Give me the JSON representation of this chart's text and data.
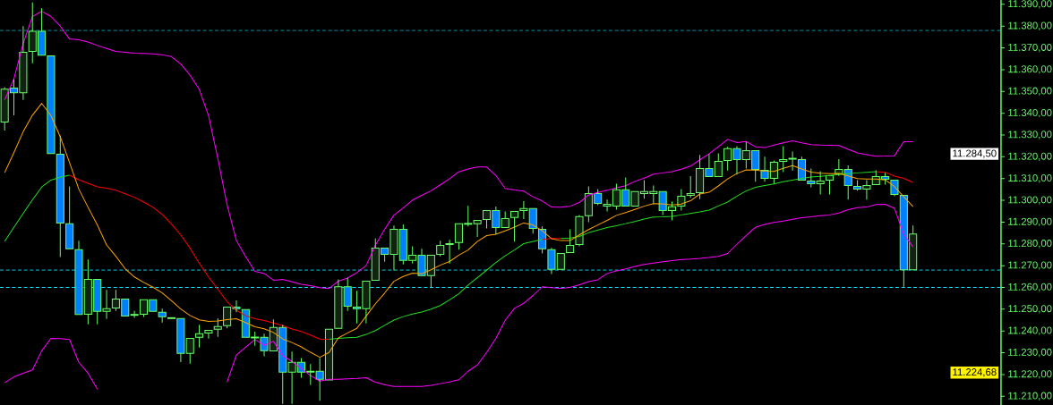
{
  "chart_data": {
    "type": "candlestick",
    "categories": [
      null,
      null,
      null,
      null,
      null,
      null,
      null,
      null,
      null,
      null,
      null,
      null,
      null,
      null,
      null,
      null,
      null,
      null,
      null,
      null,
      null,
      null,
      null,
      null,
      null,
      null,
      null,
      null,
      null,
      null,
      null,
      null,
      null,
      null,
      null,
      null,
      null,
      null,
      null,
      null,
      null,
      null,
      null,
      null,
      null,
      null,
      null,
      null,
      null,
      null,
      null,
      null,
      null,
      null,
      null,
      null,
      null,
      null,
      null,
      null,
      null,
      null,
      null,
      null,
      null,
      null,
      null,
      null,
      null,
      null,
      null,
      null,
      null,
      null,
      null,
      null,
      null,
      null,
      null,
      null,
      null,
      null,
      null,
      null,
      null,
      null,
      null,
      null,
      null,
      null,
      null,
      null,
      null,
      null,
      null,
      null,
      null,
      null,
      null
    ],
    "ohlc": [
      [
        11336,
        11352,
        11332,
        11351
      ],
      [
        11351.6,
        11355.7,
        11339.0,
        11349.4
      ],
      [
        11349.4,
        11380.0,
        11346.1,
        11368.0
      ],
      [
        11368.4,
        11390.9,
        11362.9,
        11377.6
      ],
      [
        11377.6,
        11388.2,
        11366.2,
        11366.6
      ],
      [
        11366.3,
        11366.9,
        11321.1,
        11321.5
      ],
      [
        11321.2,
        11329.7,
        11274.0,
        11289.6
      ],
      [
        11289.2,
        11306.4,
        11277.3,
        11277.7
      ],
      [
        11277.3,
        11281.4,
        11247.2,
        11247.6
      ],
      [
        11247.7,
        11272.8,
        11243.1,
        11263.7
      ],
      [
        11263.7,
        11263.7,
        11243.1,
        11249.0
      ],
      [
        11249.0,
        11258.9,
        11245.5,
        11250.2
      ],
      [
        11250.6,
        11258.9,
        11249.2,
        11254.7
      ],
      [
        11254.7,
        11254.7,
        11246.4,
        11246.9
      ],
      [
        11247.2,
        11249.2,
        11246.0,
        11247.6
      ],
      [
        11247.7,
        11254.3,
        11246.4,
        11254.3
      ],
      [
        11254.3,
        11254.3,
        11248.6,
        11249.0
      ],
      [
        11248.6,
        11250.2,
        11243.9,
        11246.5
      ],
      [
        11245.7,
        11246.4,
        11245.5,
        11246.1
      ],
      [
        11245.7,
        11245.7,
        11225.7,
        11229.7
      ],
      [
        11229.7,
        11236.6,
        11225.0,
        11236.6
      ],
      [
        11237.1,
        11242.8,
        11232.4,
        11238.7
      ],
      [
        11239.1,
        11240.9,
        11236.5,
        11240.3
      ],
      [
        11240.8,
        11245.8,
        11237.3,
        11242.0
      ],
      [
        11242.4,
        11251.0,
        11241.2,
        11251.0
      ],
      [
        11251.0,
        11254.0,
        11248.6,
        11250.2
      ],
      [
        11249.8,
        11249.8,
        11236.5,
        11237.1
      ],
      [
        11236.8,
        11239.7,
        11233.2,
        11237.2
      ],
      [
        11237.1,
        11238.7,
        11228.4,
        11230.9
      ],
      [
        11230.8,
        11245.3,
        11230.4,
        11241.6
      ],
      [
        11241.6,
        11242.8,
        11206.5,
        11221.1
      ],
      [
        11221.1,
        11230.5,
        11206.5,
        11225.6
      ],
      [
        11225.6,
        11227.6,
        11218.5,
        11221.1
      ],
      [
        11221.1,
        11224.8,
        11215.2,
        11221.5
      ],
      [
        11221.5,
        11227.6,
        11208.0,
        11217.8
      ],
      [
        11217.5,
        11241.4,
        11217.5,
        11240.8
      ],
      [
        11241.2,
        11263.7,
        11240.6,
        11260.3
      ],
      [
        11260.3,
        11264.4,
        11249.2,
        11251.4
      ],
      [
        11251.0,
        11258.5,
        11243.5,
        11250.2
      ],
      [
        11250.2,
        11262.9,
        11243.5,
        11262.9
      ],
      [
        11263.3,
        11282.5,
        11262.9,
        11278.1
      ],
      [
        11278.1,
        11278.1,
        11271.8,
        11275.2
      ],
      [
        11275.2,
        11288.4,
        11267.8,
        11286.7
      ],
      [
        11286.7,
        11288.9,
        11270.6,
        11272.4
      ],
      [
        11272.4,
        11278.9,
        11271.0,
        11274.8
      ],
      [
        11274.8,
        11277.8,
        11265.0,
        11265.4
      ],
      [
        11265.4,
        11274.8,
        11260.0,
        11274.8
      ],
      [
        11275.2,
        11281.4,
        11274.3,
        11279.3
      ],
      [
        11279.7,
        11281.9,
        11271.0,
        11280.1
      ],
      [
        11280.6,
        11289.2,
        11277.3,
        11289.2
      ],
      [
        11289.0,
        11297.5,
        11288.0,
        11289.4
      ],
      [
        11289.2,
        11290.8,
        11283.2,
        11290.8
      ],
      [
        11291.2,
        11295.7,
        11287.1,
        11295.3
      ],
      [
        11295.3,
        11297.1,
        11284.3,
        11287.5
      ],
      [
        11287.5,
        11294.9,
        11287.5,
        11291.6
      ],
      [
        11292.1,
        11294.9,
        11281.0,
        11294.9
      ],
      [
        11295.3,
        11299.6,
        11291.4,
        11296.2
      ],
      [
        11296.2,
        11296.2,
        11284.7,
        11287.1
      ],
      [
        11286.7,
        11288.0,
        11275.6,
        11277.7
      ],
      [
        11277.3,
        11278.2,
        11266.2,
        11268.3
      ],
      [
        11268.3,
        11275.6,
        11267.9,
        11275.6
      ],
      [
        11276.0,
        11286.7,
        11275.6,
        11279.3
      ],
      [
        11279.7,
        11293.3,
        11278.9,
        11292.5
      ],
      [
        11292.9,
        11306.4,
        11290.0,
        11303.1
      ],
      [
        11303.1,
        11305.2,
        11297.8,
        11298.6
      ],
      [
        11297.4,
        11300.3,
        11294.9,
        11298.2
      ],
      [
        11297.4,
        11307.6,
        11295.7,
        11304.8
      ],
      [
        11304.8,
        11310.5,
        11297.0,
        11297.4
      ],
      [
        11297.4,
        11304.4,
        11297.4,
        11304.0
      ],
      [
        11303.1,
        11309.3,
        11300.7,
        11304.0
      ],
      [
        11303.1,
        11306.8,
        11298.6,
        11304.0
      ],
      [
        11304.0,
        11304.0,
        11293.3,
        11295.3
      ],
      [
        11295.3,
        11299.4,
        11290.8,
        11297.0
      ],
      [
        11297.4,
        11305.2,
        11295.3,
        11301.9
      ],
      [
        11302.3,
        11311.1,
        11301.2,
        11303.1
      ],
      [
        11303.5,
        11320.9,
        11300.5,
        11314.6
      ],
      [
        11314.6,
        11321.3,
        11310.2,
        11310.9
      ],
      [
        11310.9,
        11321.6,
        11310.2,
        11317.9
      ],
      [
        11318.3,
        11324.6,
        11313.7,
        11323.7
      ],
      [
        11323.7,
        11324.9,
        11311.8,
        11318.7
      ],
      [
        11318.7,
        11326.8,
        11314.6,
        11322.8
      ],
      [
        11322.8,
        11322.8,
        11308.5,
        11314.2
      ],
      [
        11313.8,
        11320.0,
        11308.5,
        11310.1
      ],
      [
        11310.1,
        11318.3,
        11307.6,
        11317.5
      ],
      [
        11317.9,
        11324.9,
        11313.0,
        11318.7
      ],
      [
        11318.9,
        11322.4,
        11313.7,
        11319.3
      ],
      [
        11318.7,
        11320.0,
        11308.9,
        11309.3
      ],
      [
        11308.9,
        11314.6,
        11306.0,
        11307.6
      ],
      [
        11307.6,
        11313.4,
        11302.7,
        11308.9
      ],
      [
        11309.3,
        11311.3,
        11302.7,
        11311.3
      ],
      [
        11312.2,
        11318.9,
        11311.2,
        11314.2
      ],
      [
        11314.2,
        11316.0,
        11300.3,
        11306.8
      ],
      [
        11306.4,
        11309.3,
        11304.4,
        11305.2
      ],
      [
        11305.2,
        11309.3,
        11300.3,
        11306.8
      ],
      [
        11307.2,
        11313.8,
        11306.8,
        11310.9
      ],
      [
        11310.9,
        11312.6,
        11307.2,
        11309.7
      ],
      [
        11309.3,
        11309.3,
        11301.9,
        11302.7
      ],
      [
        11302.3,
        11302.3,
        11260.3,
        11268.1
      ],
      [
        11268.1,
        11288.4,
        11268.1,
        11284.5
      ]
    ],
    "color": "#66ff66",
    "colors": [
      "#112211",
      "#0080ff",
      "#112211",
      "#112211",
      "#0080ff",
      "#0080ff",
      "#0080ff",
      "#0080ff",
      "#0080ff",
      "#112211",
      "#0080ff",
      "#112211",
      "#112211",
      "#0080ff",
      "#112211",
      "#112211",
      "#0080ff",
      "#0080ff",
      "#112211",
      "#0080ff",
      "#112211",
      "#112211",
      "#112211",
      "#112211",
      "#112211",
      "#0080ff",
      "#0080ff",
      "#112211",
      "#0080ff",
      "#112211",
      "#0080ff",
      "#112211",
      "#0080ff",
      "#112211",
      "#0080ff",
      "#112211",
      "#112211",
      "#0080ff",
      "#0080ff",
      "#112211",
      "#112211",
      "#0080ff",
      "#112211",
      "#0080ff",
      "#112211",
      "#0080ff",
      "#112211",
      "#112211",
      "#112211",
      "#112211",
      "#112211",
      "#112211",
      "#112211",
      "#0080ff",
      "#112211",
      "#112211",
      "#112211",
      "#0080ff",
      "#0080ff",
      "#0080ff",
      "#112211",
      "#112211",
      "#112211",
      "#112211",
      "#0080ff",
      "#112211",
      "#112211",
      "#0080ff",
      "#112211",
      "#112211",
      "#112211",
      "#0080ff",
      "#112211",
      "#112211",
      "#112211",
      "#112211",
      "#0080ff",
      "#112211",
      "#112211",
      "#0080ff",
      "#112211",
      "#0080ff",
      "#0080ff",
      "#112211",
      "#112211",
      "#112211",
      "#0080ff",
      "#0080ff",
      "#112211",
      "#112211",
      "#112211",
      "#0080ff",
      "#0080ff",
      "#112211",
      "#112211",
      "#0080ff",
      "#0080ff",
      "#0080ff",
      "#112211"
    ],
    "series": [
      {
        "type": "line",
        "color": "#ff00ff",
        "values": [
          11346.1,
          11355.7,
          11372.0,
          11384.4,
          11386.8,
          11384.4,
          11380.0,
          11374.1,
          11373.7,
          11372.7,
          11371.1,
          11369.7,
          11368.4,
          11368.0,
          11367.6,
          11367.5,
          11367.3,
          11366.8,
          11366.0,
          11362.6,
          11357.5,
          11350.9,
          11338.9,
          11319.3,
          11297.9,
          11281.6,
          11274.2,
          11267.4,
          11266.4,
          11263.3,
          11263.7,
          11262.6,
          11261.4,
          11260.8,
          11259.9,
          11259.5,
          11262.9,
          11264.3,
          11266.8,
          11270.0,
          11279.4,
          11286.7,
          11293.2,
          11296.5,
          11300.1,
          11302.3,
          11304.4,
          11307.1,
          11309.9,
          11313.1,
          11314.4,
          11315.3,
          11315.3,
          11311.4,
          11305.5,
          11304.7,
          11304.2,
          11301.6,
          11299.7,
          11296.9,
          11296.8,
          11297.3,
          11299.0,
          11302.4,
          11303.6,
          11304.6,
          11305.8,
          11306.7,
          11308.7,
          11310.2,
          11312.0,
          11312.6,
          11313.2,
          11314.3,
          11315.7,
          11318.6,
          11321.3,
          11324.6,
          11328.0,
          11326.5,
          11327.0,
          11324.6,
          11324.2,
          11325.4,
          11326.4,
          11327.3,
          11326.4,
          11325.6,
          11325.4,
          11325.3,
          11325.2,
          11323.4,
          11321.8,
          11321.0,
          11320.2,
          11320.3,
          11320.5,
          11326.9,
          11326.9
        ]
      },
      {
        "type": "line",
        "color": "#ff00ff",
        "values": [
          11216.2,
          11218.9,
          11220.6,
          11222.1,
          11230.9,
          11236.6,
          11236.5,
          11236.1,
          11225.6,
          11220.6,
          11213.3,
          null,
          null,
          null,
          null,
          null,
          null,
          null,
          null,
          null,
          null,
          null,
          null,
          null,
          11216.5,
          11228.9,
          11232.5,
          11236.1,
          11233.4,
          11235.3,
          11228.7,
          11226.0,
          11222.8,
          11219.5,
          11217.0,
          11217.8,
          11217.8,
          11218.0,
          11218.2,
          11218.5,
          11216.5,
          11215.3,
          11214.5,
          11214.5,
          11214.5,
          11214.5,
          11215.0,
          11215.8,
          11216.6,
          11217.6,
          11221.5,
          11224.4,
          11230.1,
          11236.6,
          11244.9,
          11250.4,
          11252.7,
          11256.3,
          11260.3,
          11259.9,
          11259.6,
          11260.0,
          11261.2,
          11262.7,
          11263.5,
          11266.4,
          11267.6,
          11268.5,
          11269.6,
          11270.6,
          11271.2,
          11271.8,
          11272.3,
          11272.8,
          11273.0,
          11273.3,
          11273.7,
          11274.3,
          11275.6,
          11279.8,
          11283.9,
          11287.6,
          11288.9,
          11289.9,
          11290.5,
          11291.3,
          11292.0,
          11292.4,
          11292.9,
          11293.3,
          11294.2,
          11295.7,
          11296.6,
          11296.9,
          11298.1,
          11298.2,
          11296.3,
          11284.5,
          11278.6
        ]
      },
      {
        "type": "line",
        "color": "#22dd22",
        "values": [
          11281.1,
          11287.6,
          11294.0,
          11300.2,
          11306.1,
          11309.3,
          11310.6,
          11311.5,
          null,
          null,
          null,
          null,
          null,
          null,
          null,
          null,
          null,
          null,
          null,
          null,
          null,
          null,
          null,
          null,
          null,
          null,
          null,
          null,
          null,
          null,
          null,
          null,
          null,
          null,
          null,
          11236.2,
          11236.6,
          11236.9,
          11237.1,
          11238.4,
          11240.2,
          11242.6,
          11245.0,
          11246.6,
          11247.8,
          11248.7,
          11250.0,
          11251.7,
          11254.3,
          11257.1,
          11261.1,
          11264.5,
          11267.9,
          11271.4,
          11274.5,
          11277.2,
          11280.1,
          11281.1,
          11282.1,
          null,
          11282.5,
          11282.7,
          11283.4,
          11285.1,
          11286.3,
          11287.5,
          11288.3,
          11289.3,
          11290.3,
          11291.4,
          11292.3,
          11292.4,
          11292.6,
          11293.3,
          11294.0,
          11294.7,
          11295.5,
          11297.4,
          11299.2,
          11301.9,
          11304.3,
          11306.0,
          11306.8,
          11307.5,
          11308.5,
          11309.3,
          11310.1,
          11310.7,
          11311.0,
          11311.4,
          11311.8,
          11312.2,
          11312.6,
          11312.9,
          11313.2,
          null,
          null,
          null,
          null
        ]
      },
      {
        "type": "line",
        "color": "#ff0000",
        "values": [
          null,
          null,
          null,
          null,
          null,
          null,
          null,
          11311.5,
          11309.5,
          11307.8,
          11306.2,
          11305.6,
          11304.6,
          11303.0,
          11301.4,
          11299.2,
          11296.8,
          11293.5,
          11289.1,
          11284.1,
          11278.1,
          11271.1,
          11264.8,
          11259.2,
          11253.4,
          11249.5,
          11247.0,
          11245.6,
          11244.8,
          11243.7,
          11242.4,
          11240.9,
          11239.8,
          11238.1,
          11236.3,
          11236.2,
          null,
          null,
          null,
          null,
          null,
          null,
          null,
          null,
          null,
          null,
          null,
          null,
          null,
          null,
          null,
          null,
          null,
          null,
          null,
          null,
          null,
          null,
          11282.1,
          11282.5,
          11282.5,
          null,
          null,
          null,
          null,
          null,
          null,
          null,
          null,
          null,
          null,
          null,
          null,
          null,
          null,
          null,
          null,
          null,
          null,
          null,
          null,
          null,
          null,
          null,
          null,
          null,
          null,
          null,
          null,
          null,
          null,
          null,
          null,
          null,
          11313.2,
          11312.9,
          11311.1,
          11310.1,
          11308.2
        ]
      },
      {
        "type": "line",
        "color": "#ffa500",
        "values": [
          11312.7,
          11321.9,
          11331.5,
          11339.1,
          11344.5,
          11338.9,
          11329.2,
          11317.3,
          11305.2,
          11296.8,
          11288.7,
          11279.5,
          11274.3,
          11268.6,
          11264.8,
          11262.3,
          11260.1,
          11257.5,
          11253.9,
          11250.1,
          11247.1,
          11245.1,
          11244.4,
          11244.6,
          11245.2,
          11245.6,
          11243.9,
          11241.9,
          11241.0,
          11239.3,
          11236.3,
          11234.7,
          11232.7,
          11230.2,
          11227.9,
          11230.1,
          11236.8,
          11239.1,
          11241.2,
          11246.8,
          11252.5,
          11257.4,
          11262.8,
          11265.0,
          11266.6,
          11266.3,
          11268.1,
          11270.2,
          11271.9,
          11274.8,
          11277.2,
          11281.1,
          11283.8,
          11284.4,
          11286.0,
          11287.7,
          11289.6,
          11288.7,
          11286.0,
          11282.4,
          11281.5,
          11281.5,
          11284.1,
          11286.6,
          11288.7,
          11290.8,
          11293.1,
          11294.4,
          11295.8,
          11297.3,
          11298.5,
          11298.4,
          11297.9,
          11298.3,
          11299.8,
          11302.9,
          11303.7,
          11306.6,
          11309.8,
          11312.3,
          11314.0,
          11313.9,
          11313.4,
          11313.3,
          11314.7,
          11315.9,
          11314.4,
          11313.0,
          11312.4,
          11312.2,
          11312.3,
          11311.2,
          11310.0,
          11309.8,
          11309.8,
          11309.4,
          11306.3,
          11301.6,
          11297.1
        ]
      }
    ],
    "ylim": [
      11206,
      11392
    ],
    "yticks": [
      {
        "value": 11210,
        "label": "11.210,00"
      },
      {
        "value": 11220,
        "label": "11.220,00"
      },
      {
        "value": 11230,
        "label": "11.230,00"
      },
      {
        "value": 11240,
        "label": "11.240,00"
      },
      {
        "value": 11250,
        "label": "11.250,00"
      },
      {
        "value": 11260,
        "label": "11.260,00"
      },
      {
        "value": 11270,
        "label": "11.270,00"
      },
      {
        "value": 11280,
        "label": "11.280,00"
      },
      {
        "value": 11290,
        "label": "11.290,00"
      },
      {
        "value": 11300,
        "label": "11.300,00"
      },
      {
        "value": 11310,
        "label": "11.310,00"
      },
      {
        "value": 11320,
        "label": "11.320,00"
      },
      {
        "value": 11330,
        "label": "11.330,00"
      },
      {
        "value": 11340,
        "label": "11.340,00"
      },
      {
        "value": 11350,
        "label": "11.350,00"
      },
      {
        "value": 11360,
        "label": "11.360,00"
      },
      {
        "value": 11370,
        "label": "11.370,00"
      },
      {
        "value": 11380,
        "label": "11.380,00"
      },
      {
        "value": 11390,
        "label": "11.390,00"
      }
    ],
    "tick_labels": "y",
    "ref_lines": [
      {
        "axis": "y",
        "value": 11378,
        "color": "#00e5ff",
        "line_style": "dashed"
      },
      {
        "axis": "y",
        "value": 11268,
        "color": "#00e5ff",
        "line_style": "dashed"
      },
      {
        "axis": "y",
        "value": 11260,
        "color": "#00e5ff",
        "line_style": "dashed"
      }
    ],
    "annotations": [
      "11.284,50",
      "11.224,68"
    ]
  }
}
